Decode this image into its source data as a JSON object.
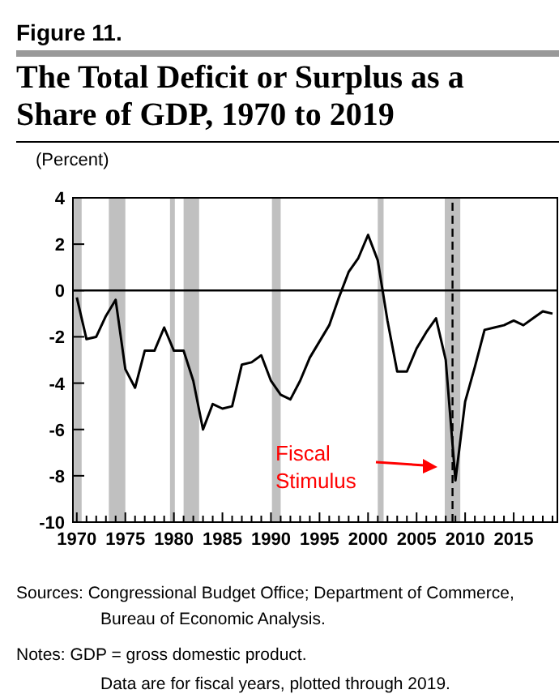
{
  "chart_data": {
    "type": "line",
    "subtitle": "Figure 11.",
    "title": "The Total Deficit or Surplus as a Share of GDP, 1970 to 2019",
    "ylabel": "(Percent)",
    "x": [
      1970,
      1971,
      1972,
      1973,
      1974,
      1975,
      1976,
      1977,
      1978,
      1979,
      1980,
      1981,
      1982,
      1983,
      1984,
      1985,
      1986,
      1987,
      1988,
      1989,
      1990,
      1991,
      1992,
      1993,
      1994,
      1995,
      1996,
      1997,
      1998,
      1999,
      2000,
      2001,
      2002,
      2003,
      2004,
      2005,
      2006,
      2007,
      2008,
      2009,
      2010,
      2011,
      2012,
      2013,
      2014,
      2015,
      2016,
      2017,
      2018,
      2019
    ],
    "series": [
      {
        "color": "#000000",
        "values": [
          -0.3,
          -2.1,
          -2.0,
          -1.1,
          -0.4,
          -3.4,
          -4.2,
          -2.6,
          -2.6,
          -1.6,
          -2.6,
          -2.6,
          -3.9,
          -6.0,
          -4.9,
          -5.1,
          -5.0,
          -3.2,
          -3.1,
          -2.8,
          -3.9,
          -4.5,
          -4.7,
          -3.9,
          -2.9,
          -2.2,
          -1.5,
          -0.3,
          0.8,
          1.4,
          2.4,
          1.3,
          -1.3,
          -3.5,
          -3.5,
          -2.5,
          -1.8,
          -1.2,
          -3.0,
          -8.2,
          -4.8,
          -3.3,
          -1.7,
          -1.6,
          -1.5,
          -1.3,
          -1.5,
          -1.2,
          -0.9,
          -1.0
        ]
      }
    ],
    "xlim": [
      1969.6,
      2019.5
    ],
    "ylim": [
      -10,
      4
    ],
    "yticks": [
      -10,
      -8,
      -6,
      -4,
      -2,
      0,
      2,
      4
    ],
    "xticks": [
      1970,
      {
        "value": 1971,
        "label": null
      },
      {
        "value": 1972,
        "label": null
      },
      {
        "value": 1973,
        "label": null
      },
      {
        "value": 1974,
        "label": null
      },
      1975,
      {
        "value": 1976,
        "label": null
      },
      {
        "value": 1977,
        "label": null
      },
      {
        "value": 1978,
        "label": null
      },
      {
        "value": 1979,
        "label": null
      },
      1980,
      {
        "value": 1981,
        "label": null
      },
      {
        "value": 1982,
        "label": null
      },
      {
        "value": 1983,
        "label": null
      },
      {
        "value": 1984,
        "label": null
      },
      1985,
      {
        "value": 1986,
        "label": null
      },
      {
        "value": 1987,
        "label": null
      },
      {
        "value": 1988,
        "label": null
      },
      {
        "value": 1989,
        "label": null
      },
      1990,
      {
        "value": 1991,
        "label": null
      },
      {
        "value": 1992,
        "label": null
      },
      {
        "value": 1993,
        "label": null
      },
      {
        "value": 1994,
        "label": null
      },
      1995,
      {
        "value": 1996,
        "label": null
      },
      {
        "value": 1997,
        "label": null
      },
      {
        "value": 1998,
        "label": null
      },
      {
        "value": 1999,
        "label": null
      },
      2000,
      {
        "value": 2001,
        "label": null
      },
      {
        "value": 2002,
        "label": null
      },
      {
        "value": 2003,
        "label": null
      },
      {
        "value": 2004,
        "label": null
      },
      2005,
      {
        "value": 2006,
        "label": null
      },
      {
        "value": 2007,
        "label": null
      },
      {
        "value": 2008,
        "label": null
      },
      {
        "value": 2009,
        "label": null
      },
      2010,
      {
        "value": 2011,
        "label": null
      },
      {
        "value": 2012,
        "label": null
      },
      {
        "value": 2013,
        "label": null
      },
      {
        "value": 2014,
        "label": null
      },
      2015,
      {
        "value": 2016,
        "label": null
      },
      {
        "value": 2017,
        "label": null
      },
      {
        "value": 2018,
        "label": null
      },
      {
        "value": 2019,
        "label": null
      }
    ],
    "marker": "none",
    "bands": [
      {
        "axis": "x",
        "from": 1969.7,
        "to": 1970.5,
        "color": "#c0c0c0"
      },
      {
        "axis": "x",
        "from": 1973.3,
        "to": 1975.0,
        "color": "#c0c0c0"
      },
      {
        "axis": "x",
        "from": 1979.6,
        "to": 1980.1,
        "color": "#c0c0c0"
      },
      {
        "axis": "x",
        "from": 1981.0,
        "to": 1982.6,
        "color": "#c0c0c0"
      },
      {
        "axis": "x",
        "from": 1990.1,
        "to": 1991.0,
        "color": "#c0c0c0"
      },
      {
        "axis": "x",
        "from": 2001.0,
        "to": 2001.6,
        "color": "#c0c0c0"
      },
      {
        "axis": "x",
        "from": 2007.9,
        "to": 2009.5,
        "color": "#c0c0c0"
      }
    ],
    "ref_lines": [
      {
        "axis": "y",
        "value": 0,
        "color": "#000000",
        "line_style": "solid"
      },
      {
        "axis": "x",
        "value": 2008.7,
        "color": "#000000",
        "line_style": "dashed"
      }
    ],
    "annotations": [
      "Fiscal Stimulus",
      "Sources: Congressional Budget Office; Department of Commerce, Bureau of Economic Analysis.",
      "Notes: GDP = gross domestic product.",
      "Data are for fiscal years, plotted through 2019."
    ]
  }
}
